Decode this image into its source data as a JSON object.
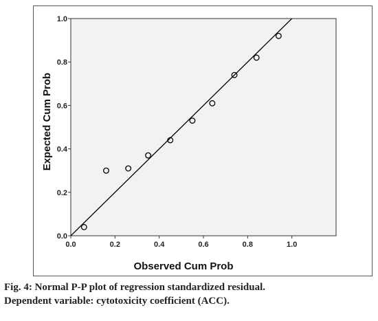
{
  "chart_data": {
    "type": "scatter",
    "title": "",
    "xlabel": "Observed Cum Prob",
    "ylabel": "Expected Cum Prob",
    "xlim": [
      0,
      1.2
    ],
    "ylim": [
      0,
      1.0
    ],
    "x_ticks": [
      "0.0",
      "0.2",
      "0.4",
      "0.6",
      "0.8",
      "1.0"
    ],
    "y_ticks": [
      "0.0",
      "0.2",
      "0.4",
      "0.6",
      "0.8",
      "1.0"
    ],
    "grid": false,
    "reference_line": "y = x",
    "points": [
      {
        "x": 0.06,
        "y": 0.04
      },
      {
        "x": 0.16,
        "y": 0.3
      },
      {
        "x": 0.26,
        "y": 0.31
      },
      {
        "x": 0.35,
        "y": 0.37
      },
      {
        "x": 0.45,
        "y": 0.44
      },
      {
        "x": 0.55,
        "y": 0.53
      },
      {
        "x": 0.64,
        "y": 0.61
      },
      {
        "x": 0.74,
        "y": 0.74
      },
      {
        "x": 0.84,
        "y": 0.82
      },
      {
        "x": 0.94,
        "y": 0.92
      }
    ]
  },
  "caption": {
    "line1": "Fig. 4: Normal P-P plot of regression standardized residual.",
    "line2": "Dependent variable: cytotoxicity coefficient (ACC)."
  },
  "colors": {
    "plot_background": "#f2f2f2",
    "line": "#000000",
    "marker_stroke": "#000000"
  }
}
